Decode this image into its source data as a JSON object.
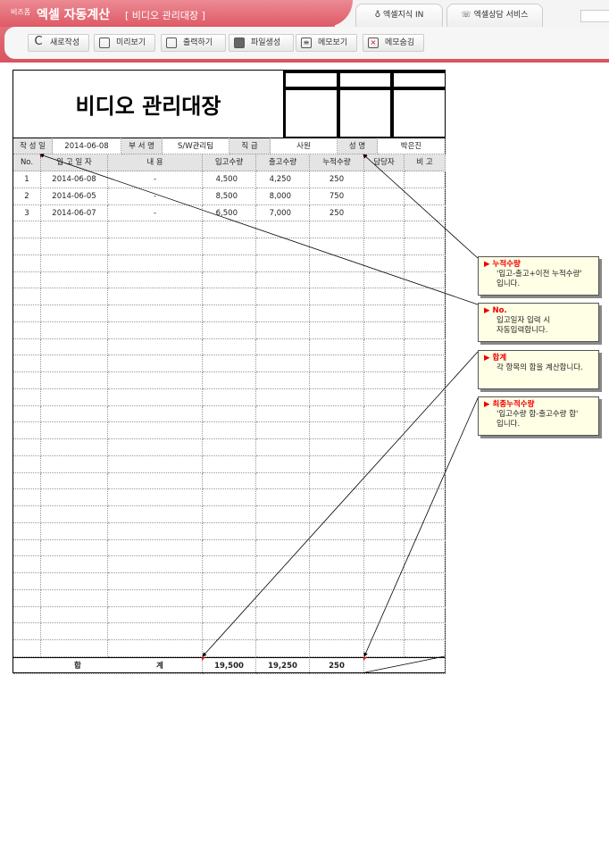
{
  "header": {
    "logo": "비즈폼",
    "app_title": "엑셀 자동계산",
    "doc_title": "[ 비디오 관리대장 ]",
    "tabs": [
      {
        "label": "엑셀지식 IN",
        "icon": "lightbulb-icon"
      },
      {
        "label": "엑셀상담 서비스",
        "icon": "phone-icon"
      }
    ]
  },
  "toolbar": [
    {
      "label": "새로작성",
      "icon": "refresh-icon"
    },
    {
      "label": "미리보기",
      "icon": "monitor-icon"
    },
    {
      "label": "출력하기",
      "icon": "print-icon"
    },
    {
      "label": "파일생성",
      "icon": "folder-icon"
    },
    {
      "label": "메모보기",
      "icon": "memo-icon"
    },
    {
      "label": "메모숨김",
      "icon": "memo-hide-icon"
    }
  ],
  "sheet": {
    "title": "비디오 관리대장",
    "info": {
      "date_label": "작 성 일",
      "date": "2014-06-08",
      "dept_label": "부 서 명",
      "dept": "S/W관리팀",
      "rank_label": "직  급",
      "rank": "사원",
      "name_label": "성  명",
      "name": "박은진"
    },
    "columns": [
      "No.",
      "입 고 일 자",
      "내          용",
      "입고수량",
      "출고수량",
      "누적수량",
      "담당자",
      "비  고"
    ],
    "rows": [
      [
        "1",
        "2014-06-08",
        "-",
        "4,500",
        "4,250",
        "250",
        "",
        ""
      ],
      [
        "2",
        "2014-06-05",
        "-",
        "8,500",
        "8,000",
        "750",
        "",
        ""
      ],
      [
        "3",
        "2014-06-07",
        "-",
        "6,500",
        "7,000",
        "250",
        "",
        ""
      ]
    ],
    "total": {
      "label1": "합",
      "label2": "계",
      "in": "19,500",
      "out": "19,250",
      "cum": "250"
    }
  },
  "callouts": [
    {
      "title": "누적수량",
      "body": [
        "'입고-출고+이전 누적수량'",
        "입니다."
      ]
    },
    {
      "title": "No.",
      "body": [
        "입고일자 입력 시",
        "자동입력합니다."
      ]
    },
    {
      "title": "합계",
      "body": [
        "각 항목의 합을 계산합니다.",
        ""
      ]
    },
    {
      "title": "최종누적수량",
      "body": [
        "'입고수량 합-출고수량 합'",
        "입니다."
      ]
    }
  ]
}
